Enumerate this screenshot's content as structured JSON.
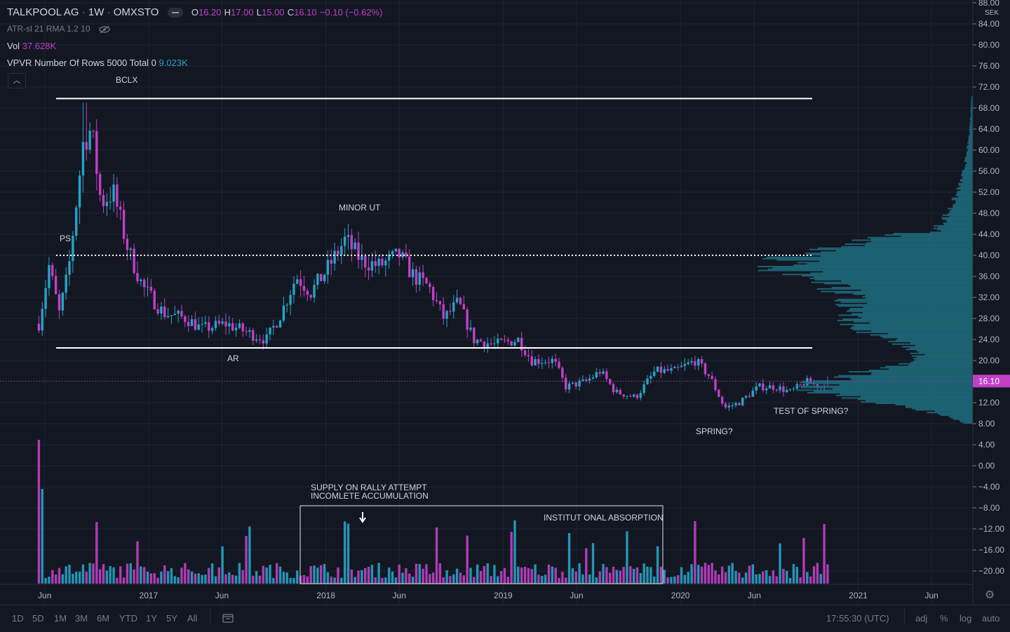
{
  "header": {
    "symbol": "TALKPOOL AG",
    "interval": "1W",
    "exchange": "OMXSTO",
    "ohlc": {
      "o_label": "O",
      "o": "16.20",
      "h_label": "H",
      "h": "17.00",
      "l_label": "L",
      "l": "15.00",
      "c_label": "C",
      "c": "16.10",
      "change": "−0.10 (−0.62%)"
    }
  },
  "indicators": [
    {
      "label": "ATR-sl 21 RMA 1.2 10",
      "value": ""
    },
    {
      "label": "Vol",
      "value": "37.628K"
    },
    {
      "label": "VPVR Number Of Rows 5000 Total 0",
      "value": "9.023K"
    }
  ],
  "price_axis": {
    "currency": "SEK",
    "ticks": [
      "88.00",
      "84.00",
      "80.00",
      "76.00",
      "72.00",
      "68.00",
      "64.00",
      "60.00",
      "56.00",
      "52.00",
      "48.00",
      "44.00",
      "40.00",
      "36.00",
      "32.00",
      "28.00",
      "24.00",
      "20.00",
      "16.00",
      "12.00",
      "8.00",
      "4.00",
      "0.00",
      "−4.00",
      "−8.00",
      "−12.00",
      "−16.00",
      "−20.00"
    ],
    "last_price": "16.10"
  },
  "time_axis": {
    "labels": [
      "Jun",
      "2017",
      "Jun",
      "2018",
      "Jun",
      "2019",
      "Jun",
      "2020",
      "Jun",
      "2021",
      "Jun"
    ]
  },
  "annotations": {
    "bclx": "BCLX",
    "ps": "PS",
    "ar": "AR",
    "minor_ut": "MINOR UT",
    "spring": "SPRING?",
    "test_spring": "TEST OF SPRING?",
    "supply_1": "SUPPLY ON RALLY ATTEMPT",
    "supply_2": "INCOMLETE ACCUMULATION",
    "absorption": "INSTITUT ONAL ABSORPTION"
  },
  "levels": {
    "top": 69.8,
    "mid": 40,
    "bottom": 22.4
  },
  "colors": {
    "up": "#26a3c7",
    "down": "#c13fc7",
    "background": "#131722",
    "grid": "#1f2433",
    "vpvr": "#1f6e80",
    "last_price": "#c13fc7"
  },
  "bottom_bar": {
    "ranges": [
      "1D",
      "5D",
      "1M",
      "3M",
      "6M",
      "YTD",
      "1Y",
      "5Y",
      "All"
    ],
    "time": "17:55:30 (UTC)",
    "options": [
      "adj",
      "%",
      "log",
      "auto"
    ]
  },
  "chart_data": {
    "type": "candlestick",
    "y_range": [
      -22,
      88
    ],
    "x_range": [
      "2016-03-01",
      "2021-08-25"
    ],
    "key_prices": [
      {
        "date": "2016-05-20",
        "close": 27
      },
      {
        "date": "2016-06-10",
        "close": 38
      },
      {
        "date": "2016-07-01",
        "close": 29
      },
      {
        "date": "2016-07-20",
        "close": 37
      },
      {
        "date": "2016-08-20",
        "close": 62
      },
      {
        "date": "2016-09-05",
        "close": 64
      },
      {
        "date": "2016-09-25",
        "close": 50
      },
      {
        "date": "2016-10-20",
        "close": 52
      },
      {
        "date": "2016-11-20",
        "close": 41
      },
      {
        "date": "2016-12-20",
        "close": 34
      },
      {
        "date": "2017-02-01",
        "close": 29
      },
      {
        "date": "2017-03-20",
        "close": 28
      },
      {
        "date": "2017-04-20",
        "close": 26
      },
      {
        "date": "2017-06-10",
        "close": 27
      },
      {
        "date": "2017-08-01",
        "close": 25
      },
      {
        "date": "2017-09-01",
        "close": 24
      },
      {
        "date": "2017-10-01",
        "close": 29
      },
      {
        "date": "2017-11-01",
        "close": 36
      },
      {
        "date": "2017-12-01",
        "close": 33
      },
      {
        "date": "2018-01-01",
        "close": 37
      },
      {
        "date": "2018-02-10",
        "close": 43
      },
      {
        "date": "2018-03-15",
        "close": 39
      },
      {
        "date": "2018-04-20",
        "close": 38
      },
      {
        "date": "2018-06-01",
        "close": 40
      },
      {
        "date": "2018-07-01",
        "close": 36
      },
      {
        "date": "2018-08-01",
        "close": 34
      },
      {
        "date": "2018-09-01",
        "close": 28
      },
      {
        "date": "2018-10-01",
        "close": 31
      },
      {
        "date": "2018-11-01",
        "close": 24
      },
      {
        "date": "2018-12-15",
        "close": 23
      },
      {
        "date": "2019-02-01",
        "close": 24
      },
      {
        "date": "2019-03-01",
        "close": 20
      },
      {
        "date": "2019-04-15",
        "close": 20
      },
      {
        "date": "2019-05-10",
        "close": 15
      },
      {
        "date": "2019-06-20",
        "close": 16
      },
      {
        "date": "2019-07-20",
        "close": 18
      },
      {
        "date": "2019-08-20",
        "close": 14
      },
      {
        "date": "2019-10-01",
        "close": 13
      },
      {
        "date": "2019-11-10",
        "close": 18
      },
      {
        "date": "2019-12-20",
        "close": 18
      },
      {
        "date": "2020-02-01",
        "close": 20
      },
      {
        "date": "2020-03-01",
        "close": 17
      },
      {
        "date": "2020-04-01",
        "close": 11
      },
      {
        "date": "2020-05-01",
        "close": 12
      },
      {
        "date": "2020-06-10",
        "close": 15
      },
      {
        "date": "2020-07-15",
        "close": 15
      },
      {
        "date": "2020-08-15",
        "close": 14
      },
      {
        "date": "2020-09-15",
        "close": 16
      },
      {
        "date": "2020-10-15",
        "close": 15
      },
      {
        "date": "2020-11-05",
        "close": 16.1
      }
    ]
  }
}
